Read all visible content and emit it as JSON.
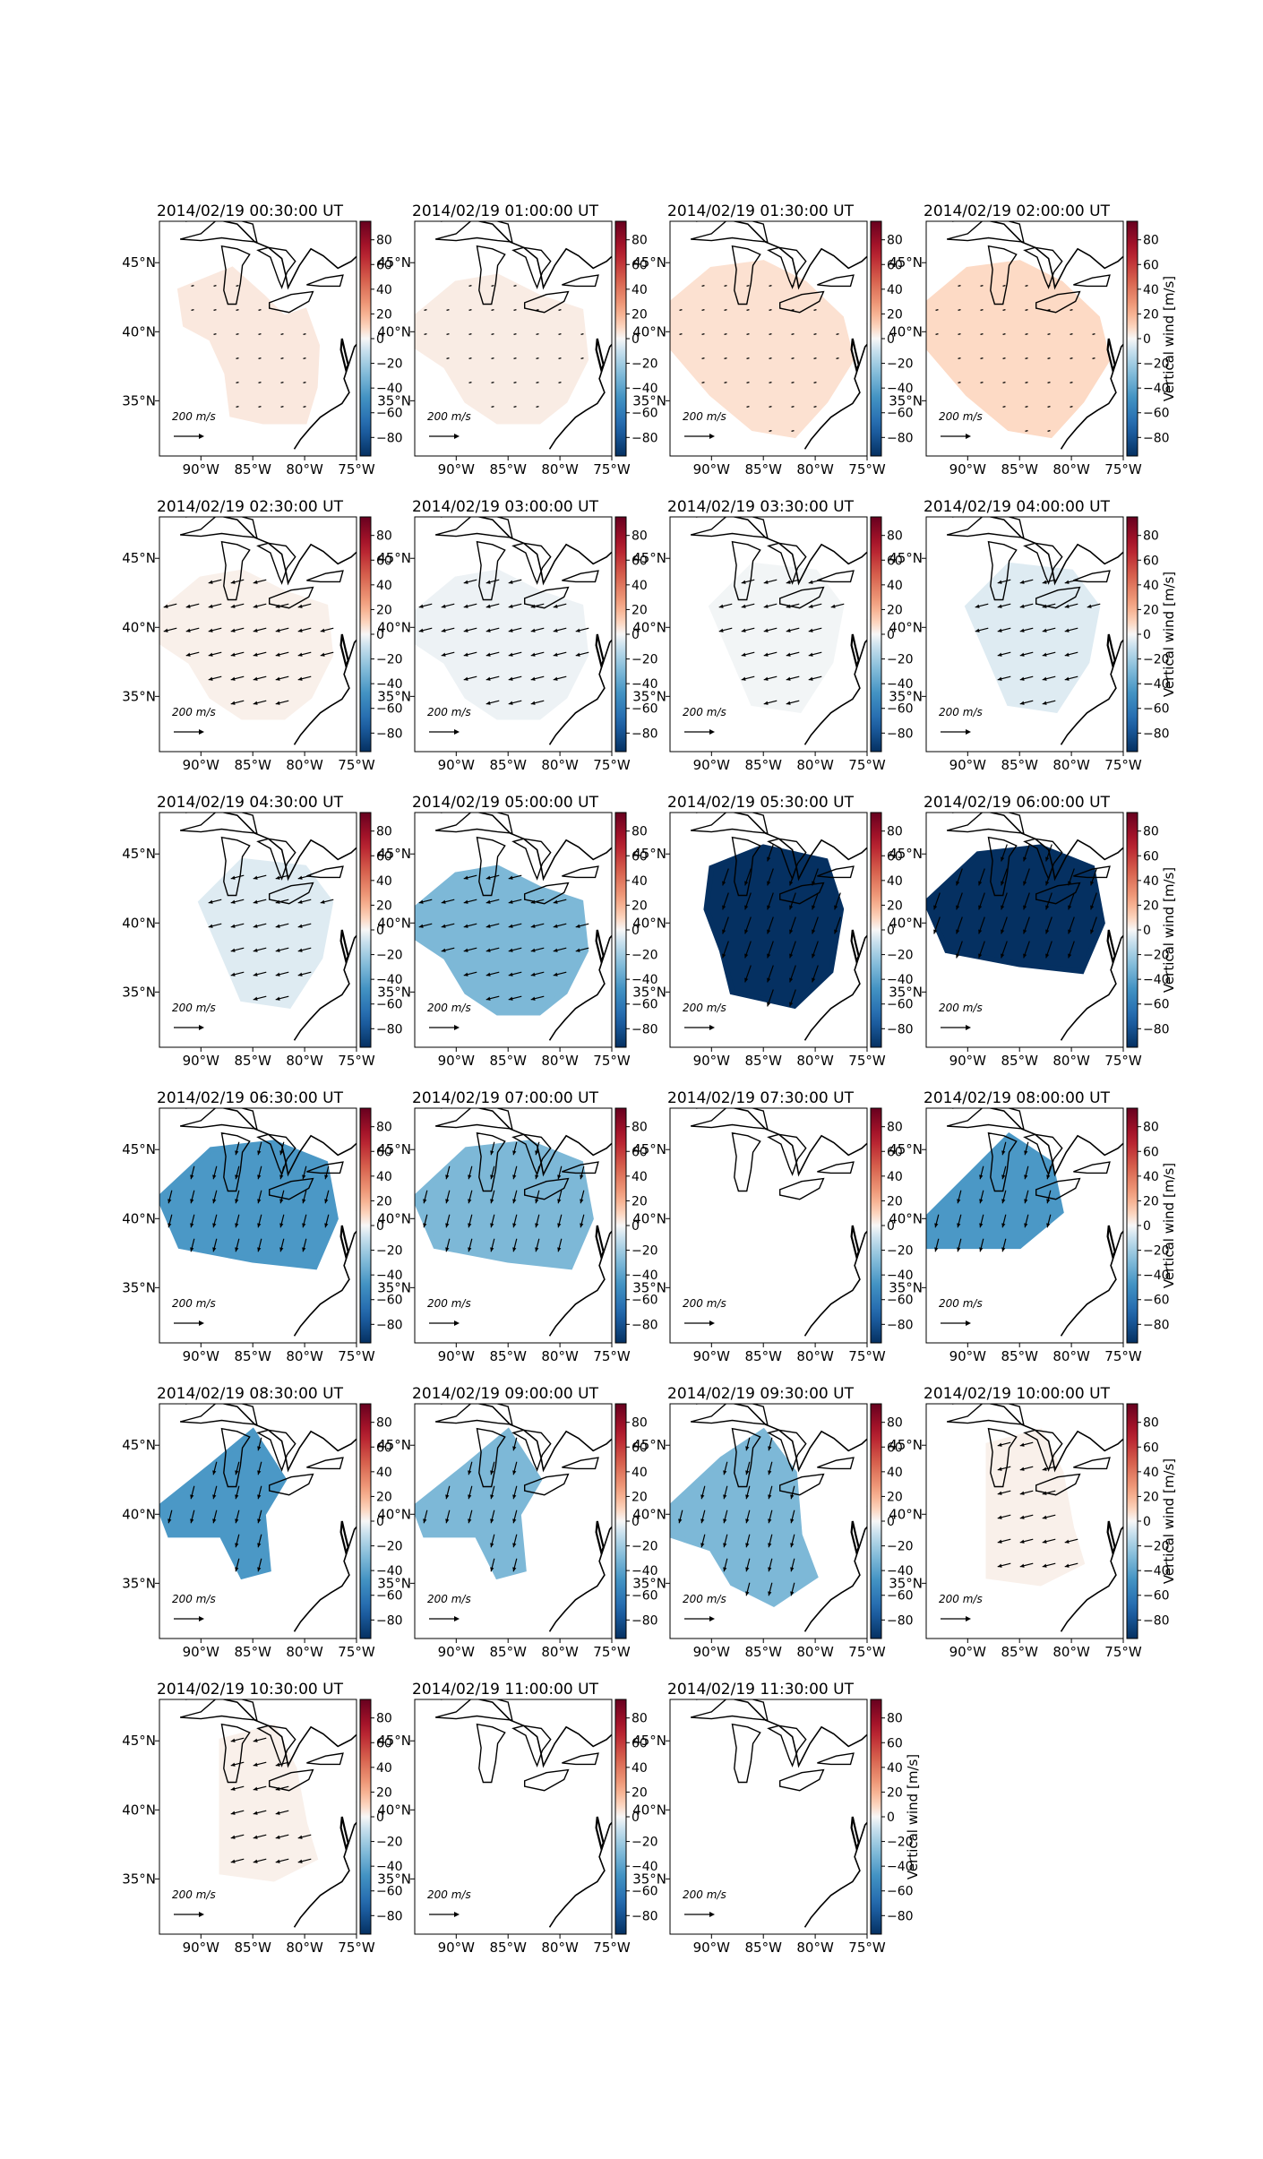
{
  "figure": {
    "colorbar_label": "Vertical wind [m/s]",
    "colorbar_ticks": [
      "80",
      "60",
      "40",
      "20",
      "0",
      "−20",
      "−40",
      "−60",
      "−80"
    ],
    "colorbar_range": [
      -95,
      95
    ],
    "colormap": "RdBu_r",
    "lon_ticks": [
      "90°W",
      "85°W",
      "80°W",
      "75°W"
    ],
    "lat_ticks": [
      "45°N",
      "40°N",
      "35°N"
    ],
    "scale_label": "200 m/s"
  },
  "chart_data": [
    {
      "type": "heatmap",
      "title": "2014/02/19 00:30:00 UT",
      "shape": "small",
      "vertical_wind": 4,
      "vectors": "tiny"
    },
    {
      "type": "heatmap",
      "title": "2014/02/19 01:00:00 UT",
      "shape": "mid",
      "vertical_wind": 3,
      "vectors": "tiny"
    },
    {
      "type": "heatmap",
      "title": "2014/02/19 01:30:00 UT",
      "shape": "large",
      "vertical_wind": 6,
      "vectors": "tiny"
    },
    {
      "type": "heatmap",
      "title": "2014/02/19 02:00:00 UT",
      "shape": "large",
      "vertical_wind": 8,
      "vectors": "tiny"
    },
    {
      "type": "heatmap",
      "title": "2014/02/19 02:30:00 UT",
      "shape": "mid",
      "vertical_wind": 2,
      "vectors": "west"
    },
    {
      "type": "heatmap",
      "title": "2014/02/19 03:00:00 UT",
      "shape": "mid",
      "vertical_wind": -2,
      "vectors": "west"
    },
    {
      "type": "heatmap",
      "title": "2014/02/19 03:30:00 UT",
      "shape": "mid-east",
      "vertical_wind": -1,
      "vectors": "west"
    },
    {
      "type": "heatmap",
      "title": "2014/02/19 04:00:00 UT",
      "shape": "mid-east",
      "vertical_wind": -5,
      "vectors": "west"
    },
    {
      "type": "heatmap",
      "title": "2014/02/19 04:30:00 UT",
      "shape": "mid-east",
      "vertical_wind": -5,
      "vectors": "west"
    },
    {
      "type": "heatmap",
      "title": "2014/02/19 05:00:00 UT",
      "shape": "mid",
      "vertical_wind": -30,
      "vectors": "west"
    },
    {
      "type": "heatmap",
      "title": "2014/02/19 05:30:00 UT",
      "shape": "blob-east",
      "vertical_wind": -95,
      "vectors": "southsw"
    },
    {
      "type": "heatmap",
      "title": "2014/02/19 06:00:00 UT",
      "shape": "blob-west",
      "vertical_wind": -95,
      "vectors": "southsw"
    },
    {
      "type": "heatmap",
      "title": "2014/02/19 06:30:00 UT",
      "shape": "blob-west",
      "vertical_wind": -45,
      "vectors": "south"
    },
    {
      "type": "heatmap",
      "title": "2014/02/19 07:00:00 UT",
      "shape": "blob-west",
      "vertical_wind": -30,
      "vectors": "south"
    },
    {
      "type": "heatmap",
      "title": "2014/02/19 07:30:00 UT",
      "shape": "none",
      "vertical_wind": 0,
      "vectors": "none"
    },
    {
      "type": "heatmap",
      "title": "2014/02/19 08:00:00 UT",
      "shape": "nw",
      "vertical_wind": -45,
      "vectors": "south"
    },
    {
      "type": "heatmap",
      "title": "2014/02/19 08:30:00 UT",
      "shape": "nw-two",
      "vertical_wind": -45,
      "vectors": "south"
    },
    {
      "type": "heatmap",
      "title": "2014/02/19 09:00:00 UT",
      "shape": "nw-two",
      "vertical_wind": -30,
      "vectors": "south"
    },
    {
      "type": "heatmap",
      "title": "2014/02/19 09:30:00 UT",
      "shape": "nw-big",
      "vertical_wind": -30,
      "vectors": "south"
    },
    {
      "type": "heatmap",
      "title": "2014/02/19 10:00:00 UT",
      "shape": "center",
      "vertical_wind": 2,
      "vectors": "west"
    },
    {
      "type": "heatmap",
      "title": "2014/02/19 10:30:00 UT",
      "shape": "center",
      "vertical_wind": 2,
      "vectors": "west"
    },
    {
      "type": "heatmap",
      "title": "2014/02/19 11:00:00 UT",
      "shape": "none",
      "vertical_wind": 0,
      "vectors": "none"
    },
    {
      "type": "heatmap",
      "title": "2014/02/19 11:30:00 UT",
      "shape": "none",
      "vertical_wind": 0,
      "vectors": "none"
    }
  ]
}
